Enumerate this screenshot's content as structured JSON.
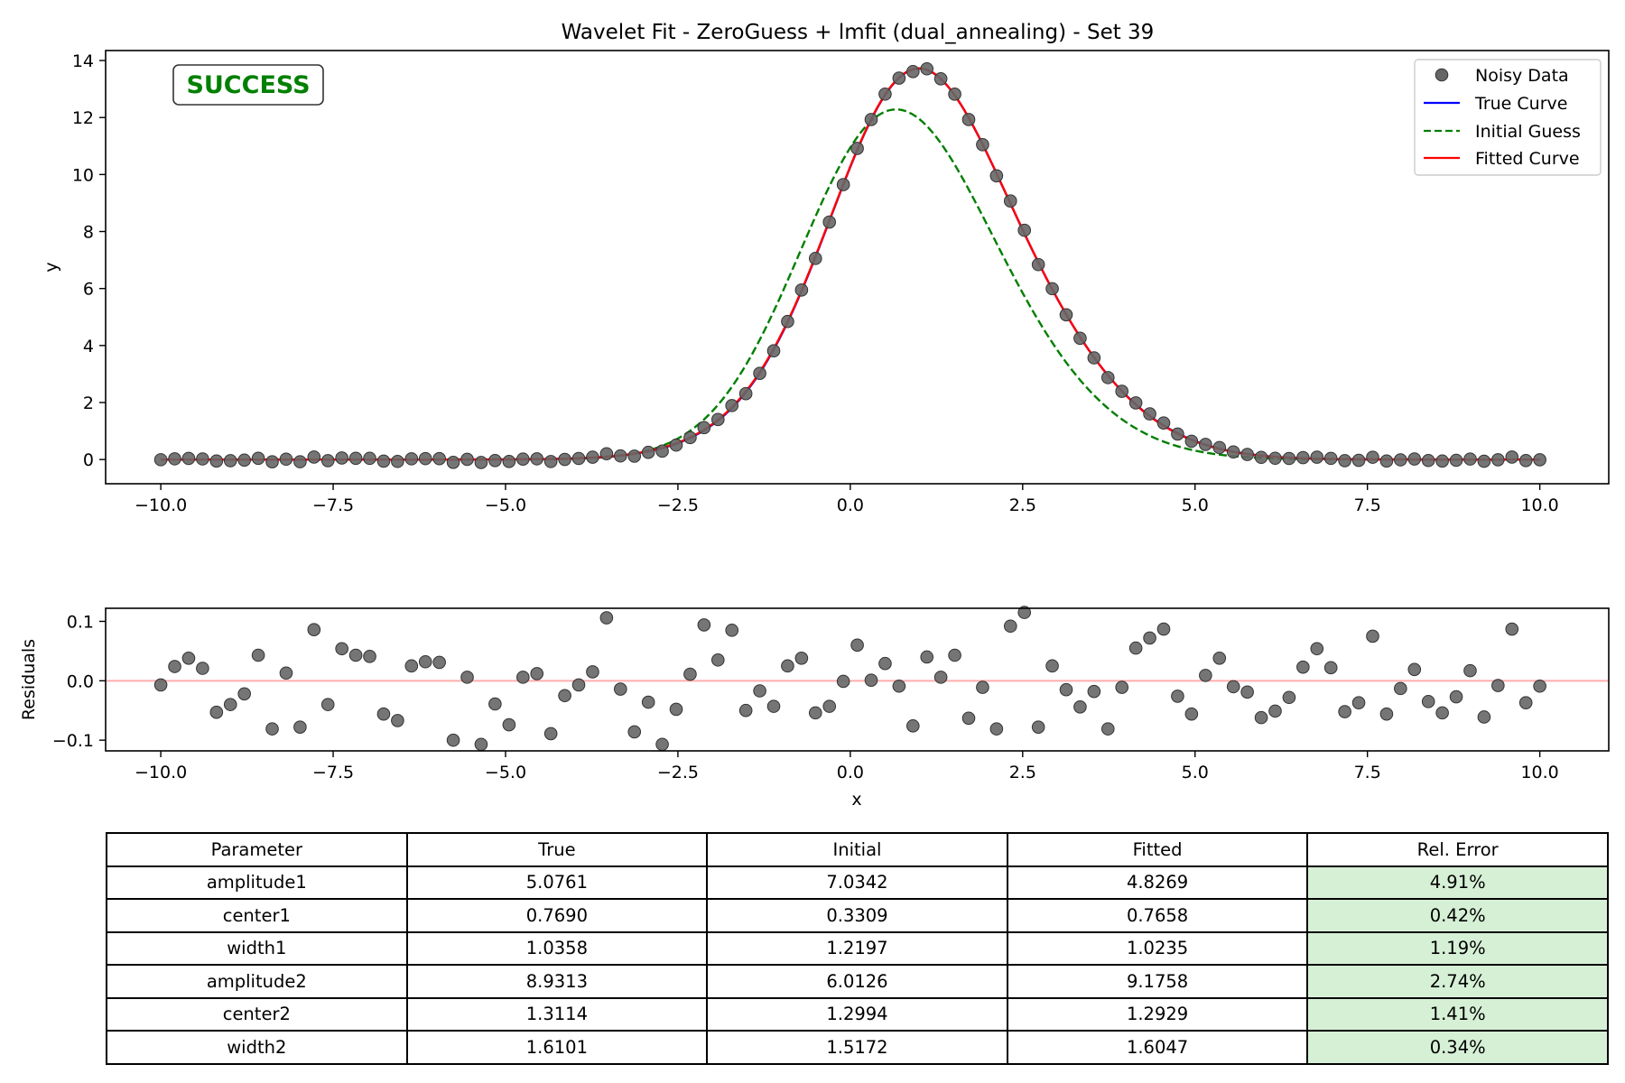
{
  "colors": {
    "noisy": "#666666",
    "true_curve": "#0000ff",
    "initial_guess": "#007f00",
    "fitted": "#ff0000",
    "success": "#008000",
    "residual_zero_line": "#ff9999",
    "good_cell": "#d6f0d6"
  },
  "badge": "SUCCESS",
  "chart_data": [
    {
      "type": "line",
      "title": "Wavelet Fit - ZeroGuess + lmfit (dual_annealing) - Set 39",
      "xlabel": "x",
      "ylabel": "y",
      "xlim": [
        -10.8,
        11.0
      ],
      "ylim": [
        -0.85,
        14.35
      ],
      "xticks": [
        -10.0,
        -7.5,
        -5.0,
        -2.5,
        0.0,
        2.5,
        5.0,
        7.5,
        10.0
      ],
      "xtick_labels": [
        "−10.0",
        "−7.5",
        "−5.0",
        "−2.5",
        "0.0",
        "2.5",
        "5.0",
        "7.5",
        "10.0"
      ],
      "yticks": [
        0,
        2,
        4,
        6,
        8,
        10,
        12,
        14
      ],
      "ytick_labels": [
        "0",
        "2",
        "4",
        "6",
        "8",
        "10",
        "12",
        "14"
      ],
      "legend_position": "top-right",
      "model": "sum of two Gaussians",
      "series": [
        {
          "name": "Noisy Data",
          "kind": "scatter"
        },
        {
          "name": "True Curve",
          "kind": "line",
          "params": {
            "amplitude1": 5.0761,
            "center1": 0.769,
            "width1": 1.0358,
            "amplitude2": 8.9313,
            "center2": 1.3114,
            "width2": 1.6101
          }
        },
        {
          "name": "Initial Guess",
          "kind": "dashed",
          "params": {
            "amplitude1": 7.0342,
            "center1": 0.3309,
            "width1": 1.2197,
            "amplitude2": 6.0126,
            "center2": 1.2994,
            "width2": 1.5172
          }
        },
        {
          "name": "Fitted Curve",
          "kind": "line",
          "params": {
            "amplitude1": 4.8269,
            "center1": 0.7658,
            "width1": 1.0235,
            "amplitude2": 9.1758,
            "center2": 1.2929,
            "width2": 1.6047
          }
        }
      ]
    },
    {
      "type": "scatter",
      "xlabel": "x",
      "ylabel": "Residuals",
      "xlim": [
        -10.8,
        11.0
      ],
      "ylim": [
        -0.118,
        0.122
      ],
      "xticks": [
        -10.0,
        -7.5,
        -5.0,
        -2.5,
        0.0,
        2.5,
        5.0,
        7.5,
        10.0
      ],
      "xtick_labels": [
        "−10.0",
        "−7.5",
        "−5.0",
        "−2.5",
        "0.0",
        "2.5",
        "5.0",
        "7.5",
        "10.0"
      ],
      "yticks": [
        -0.1,
        0.0,
        0.1
      ],
      "ytick_labels": [
        "−0.1",
        "0.0",
        "0.1"
      ],
      "x": [
        -10.0,
        -9.798,
        -9.596,
        -9.394,
        -9.192,
        -8.99,
        -8.788,
        -8.586,
        -8.384,
        -8.182,
        -7.98,
        -7.778,
        -7.576,
        -7.374,
        -7.172,
        -6.97,
        -6.768,
        -6.566,
        -6.364,
        -6.162,
        -5.96,
        -5.758,
        -5.556,
        -5.354,
        -5.152,
        -4.949,
        -4.747,
        -4.545,
        -4.343,
        -4.141,
        -3.939,
        -3.737,
        -3.535,
        -3.333,
        -3.131,
        -2.929,
        -2.727,
        -2.525,
        -2.323,
        -2.121,
        -1.919,
        -1.717,
        -1.515,
        -1.313,
        -1.111,
        -0.909,
        -0.707,
        -0.505,
        -0.303,
        -0.101,
        0.101,
        0.303,
        0.505,
        0.707,
        0.909,
        1.111,
        1.313,
        1.515,
        1.717,
        1.919,
        2.121,
        2.323,
        2.525,
        2.727,
        2.929,
        3.131,
        3.333,
        3.535,
        3.737,
        3.939,
        4.141,
        4.343,
        4.545,
        4.747,
        4.949,
        5.152,
        5.354,
        5.556,
        5.758,
        5.96,
        6.162,
        6.364,
        6.566,
        6.768,
        6.97,
        7.172,
        7.374,
        7.576,
        7.778,
        7.98,
        8.182,
        8.384,
        8.586,
        8.788,
        8.99,
        9.192,
        9.394,
        9.596,
        9.798,
        10.0
      ],
      "residuals": [
        -0.007,
        0.024,
        0.038,
        0.021,
        -0.053,
        -0.04,
        -0.022,
        0.043,
        -0.081,
        0.013,
        -0.078,
        0.086,
        -0.04,
        0.054,
        0.043,
        0.041,
        -0.056,
        -0.067,
        0.025,
        0.032,
        0.031,
        -0.1,
        0.006,
        -0.107,
        -0.039,
        -0.074,
        0.006,
        0.012,
        -0.089,
        -0.025,
        -0.007,
        0.015,
        0.106,
        -0.014,
        -0.086,
        -0.036,
        -0.107,
        -0.048,
        0.011,
        0.094,
        0.035,
        0.085,
        -0.05,
        -0.017,
        -0.043,
        0.025,
        0.038,
        -0.054,
        -0.043,
        -0.001,
        0.06,
        0.001,
        0.029,
        -0.009,
        -0.076,
        0.04,
        0.006,
        0.043,
        -0.063,
        -0.011,
        -0.081,
        0.092,
        0.115,
        -0.078,
        0.025,
        -0.015,
        -0.044,
        -0.018,
        -0.081,
        -0.011,
        0.055,
        0.072,
        0.087,
        -0.026,
        -0.056,
        0.009,
        0.038,
        -0.01,
        -0.019,
        -0.062,
        -0.051,
        -0.028,
        0.023,
        0.054,
        0.022,
        -0.052,
        -0.037,
        0.075,
        -0.056,
        -0.013,
        0.019,
        -0.035,
        -0.054,
        -0.027,
        0.017,
        -0.061,
        -0.008,
        0.087,
        -0.037,
        -0.009
      ]
    },
    {
      "type": "table",
      "columns": [
        "Parameter",
        "True",
        "Initial",
        "Fitted",
        "Rel. Error"
      ],
      "rows": [
        [
          "amplitude1",
          "5.0761",
          "7.0342",
          "4.8269",
          "4.91%"
        ],
        [
          "center1",
          "0.7690",
          "0.3309",
          "0.7658",
          "0.42%"
        ],
        [
          "width1",
          "1.0358",
          "1.2197",
          "1.0235",
          "1.19%"
        ],
        [
          "amplitude2",
          "8.9313",
          "6.0126",
          "9.1758",
          "2.74%"
        ],
        [
          "center2",
          "1.3114",
          "1.2994",
          "1.2929",
          "1.41%"
        ],
        [
          "width2",
          "1.6101",
          "1.5172",
          "1.6047",
          "0.34%"
        ]
      ]
    }
  ]
}
